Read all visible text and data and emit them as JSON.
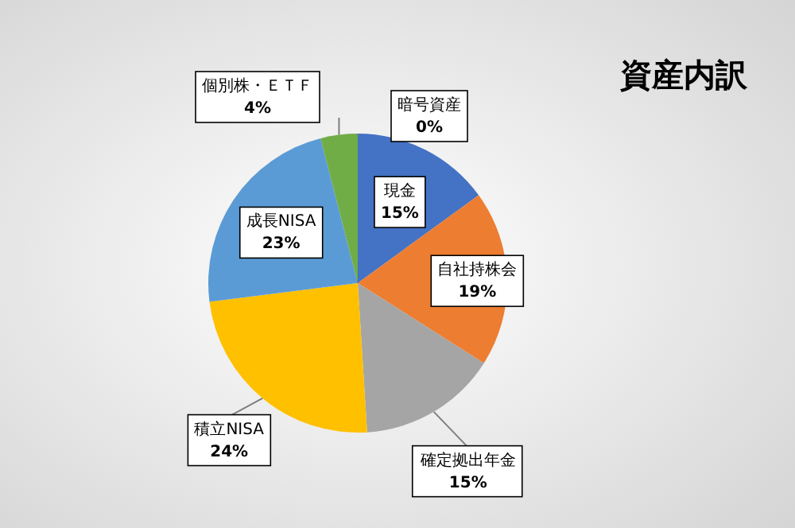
{
  "chart_data": {
    "type": "pie",
    "title": "資産内訳",
    "categories": [
      "暗号資産",
      "現金",
      "自社持株会",
      "確定拠出年金",
      "積立NISA",
      "成長NISA",
      "個別株・ＥＴＦ"
    ],
    "values": [
      0,
      15,
      19,
      15,
      24,
      23,
      4
    ],
    "value_labels": [
      "0%",
      "15%",
      "19%",
      "15%",
      "24%",
      "23%",
      "4%"
    ],
    "colors": [
      "#264478",
      "#4472c4",
      "#ed7d31",
      "#a5a5a5",
      "#ffc000",
      "#5b9bd5",
      "#70ad47"
    ],
    "legend": false
  }
}
